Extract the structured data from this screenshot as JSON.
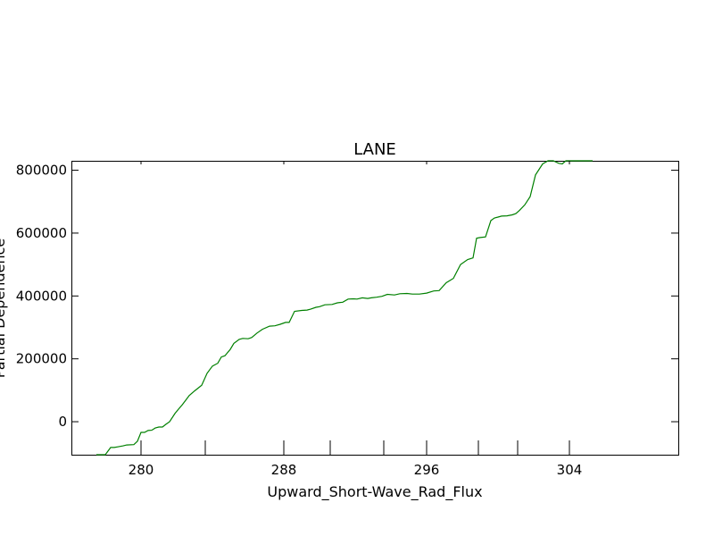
{
  "chart_data": {
    "type": "line",
    "title": "LANE",
    "xlabel": "Upward_Short-Wave_Rad_Flux",
    "ylabel": "Partial Dependence",
    "xlim": [
      276.1,
      310.1
    ],
    "ylim": [
      -105000,
      830000
    ],
    "x_ticks": [
      280,
      288,
      296,
      304
    ],
    "y_ticks": [
      0,
      200000,
      400000,
      600000,
      800000
    ],
    "x_tick_labels": [
      "280",
      "288",
      "296",
      "304"
    ],
    "y_tick_labels": [
      "0",
      "200000",
      "400000",
      "600000",
      "800000"
    ],
    "minor_x_ticks": [
      283.6,
      290.6,
      293.6,
      298.9,
      301.1
    ],
    "grid": false,
    "series": [
      {
        "color": "#008000",
        "x": [
          277.5,
          278.0,
          278.3,
          278.5,
          278.7,
          279.0,
          279.2,
          279.6,
          279.8,
          280.0,
          280.2,
          280.4,
          280.6,
          280.8,
          281.0,
          281.2,
          281.4,
          281.6,
          281.9,
          282.1,
          282.3,
          282.5,
          282.7,
          283.0,
          283.4,
          283.7,
          284.0,
          284.3,
          284.5,
          284.7,
          285.0,
          285.2,
          285.5,
          285.7,
          286.0,
          286.2,
          286.5,
          286.8,
          287.2,
          287.5,
          287.8,
          288.1,
          288.3,
          288.6,
          289.0,
          289.3,
          289.5,
          289.8,
          290.0,
          290.3,
          290.7,
          291.0,
          291.3,
          291.6,
          291.9,
          292.1,
          292.4,
          292.7,
          292.9,
          293.2,
          293.5,
          293.8,
          294.2,
          294.5,
          294.9,
          295.2,
          295.6,
          296.0,
          296.4,
          296.7,
          297.1,
          297.5,
          297.9,
          298.3,
          298.6,
          298.8,
          299.0,
          299.3,
          299.6,
          299.8,
          300.0,
          300.2,
          300.5,
          300.8,
          301.0,
          301.2,
          301.5,
          301.8,
          302.1,
          302.5,
          302.8,
          303.1,
          303.4,
          303.6,
          303.8,
          304.0,
          304.2,
          304.4,
          304.6,
          305.0,
          305.3
        ],
        "y": [
          -105000,
          -105000,
          -82000,
          -82000,
          -80000,
          -77000,
          -74000,
          -73000,
          -62000,
          -34000,
          -34000,
          -28000,
          -27000,
          -20000,
          -17000,
          -17000,
          -8000,
          0,
          26000,
          40000,
          53000,
          68000,
          83000,
          98000,
          116000,
          154000,
          177000,
          186000,
          206000,
          210000,
          230000,
          249000,
          262000,
          265000,
          264000,
          268000,
          282000,
          294000,
          304000,
          305000,
          310000,
          316000,
          316000,
          351000,
          354000,
          355000,
          358000,
          364000,
          366000,
          372000,
          373000,
          378000,
          380000,
          390000,
          391000,
          390000,
          394000,
          392000,
          394000,
          396000,
          399000,
          405000,
          403000,
          407000,
          408000,
          406000,
          406000,
          409000,
          416000,
          417000,
          442000,
          456000,
          500000,
          516000,
          521000,
          584000,
          586000,
          588000,
          640000,
          648000,
          651000,
          654000,
          655000,
          658000,
          662000,
          672000,
          690000,
          716000,
          785000,
          820000,
          830000,
          830000,
          822000,
          820000,
          830000,
          830000,
          830000,
          830000,
          830000,
          830000,
          830000
        ]
      }
    ]
  }
}
